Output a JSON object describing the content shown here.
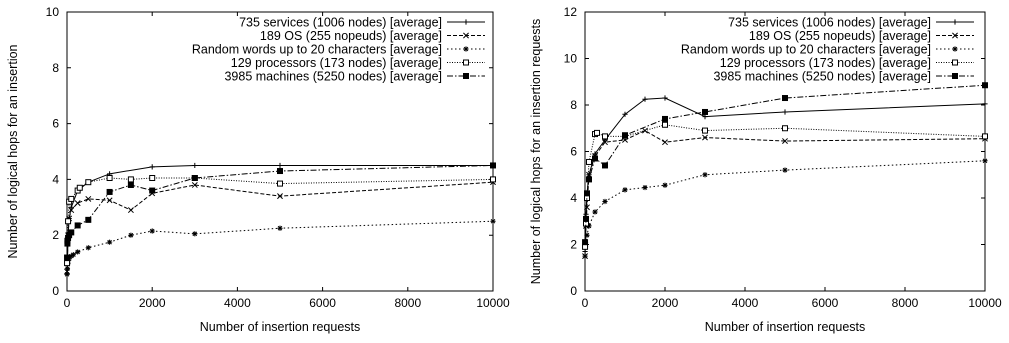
{
  "chart_data": [
    {
      "type": "line",
      "xlabel": "Number of insertion requests",
      "ylabel": "Number of logical hops for an insertion",
      "xlim": [
        0,
        10000
      ],
      "ylim": [
        0,
        10
      ],
      "xticks": [
        "0",
        "2000",
        "4000",
        "6000",
        "8000",
        "10000"
      ],
      "yticks": [
        "0",
        "2",
        "4",
        "6",
        "8",
        "10"
      ],
      "legend_position": "top-right",
      "grid": false,
      "series": [
        {
          "name": "735 services (1006 nodes) [average]",
          "marker": "plus",
          "dash": "solid",
          "x": [
            1,
            10,
            25,
            50,
            100,
            250,
            500,
            1000,
            2000,
            3000,
            5000,
            10000
          ],
          "y": [
            0.6,
            1.0,
            2.0,
            2.6,
            3.0,
            3.6,
            3.9,
            4.2,
            4.45,
            4.5,
            4.5,
            4.5
          ]
        },
        {
          "name": "189 OS (255 nopeuds) [average]",
          "marker": "x",
          "dash": "dashed",
          "x": [
            1,
            10,
            25,
            50,
            100,
            250,
            500,
            1000,
            1500,
            2000,
            3000,
            5000,
            10000
          ],
          "y": [
            0.7,
            1.2,
            2.0,
            2.6,
            2.9,
            3.15,
            3.3,
            3.25,
            2.9,
            3.5,
            3.8,
            3.4,
            3.9
          ]
        },
        {
          "name": "Random words up to 20 characters [average]",
          "marker": "star",
          "dash": "dotted",
          "x": [
            1,
            10,
            25,
            50,
            100,
            150,
            250,
            500,
            1000,
            1500,
            2000,
            3000,
            5000,
            10000
          ],
          "y": [
            0.6,
            0.8,
            1.0,
            1.15,
            1.25,
            1.3,
            1.4,
            1.55,
            1.75,
            2.0,
            2.15,
            2.05,
            2.25,
            2.5
          ]
        },
        {
          "name": "129 processors (173 nodes) [average]",
          "marker": "square-open",
          "dash": "fine-dotted",
          "x": [
            1,
            10,
            25,
            50,
            100,
            250,
            300,
            500,
            1000,
            1500,
            2000,
            3000,
            5000,
            10000
          ],
          "y": [
            1.0,
            1.8,
            2.5,
            3.2,
            3.3,
            3.6,
            3.7,
            3.9,
            4.05,
            4.0,
            4.05,
            4.05,
            3.85,
            4.0
          ]
        },
        {
          "name": "3985 machines (5250 nodes) [average]",
          "marker": "square-filled",
          "dash": "dash-dot",
          "x": [
            1,
            10,
            25,
            50,
            100,
            250,
            500,
            1000,
            1500,
            2000,
            3000,
            5000,
            10000
          ],
          "y": [
            1.2,
            1.7,
            1.9,
            2.0,
            2.1,
            2.35,
            2.55,
            3.55,
            3.8,
            3.6,
            4.05,
            4.3,
            4.5
          ]
        }
      ]
    },
    {
      "type": "line",
      "xlabel": "Number of insertion requests",
      "ylabel": "Number of logical hops for an insertion requests",
      "xlim": [
        0,
        10000
      ],
      "ylim": [
        0,
        12
      ],
      "xticks": [
        "0",
        "2000",
        "4000",
        "6000",
        "8000",
        "10000"
      ],
      "yticks": [
        "0",
        "2",
        "4",
        "6",
        "8",
        "10",
        "12"
      ],
      "legend_position": "top-right",
      "grid": false,
      "series": [
        {
          "name": "735 services (1006 nodes) [average]",
          "marker": "plus",
          "dash": "solid",
          "x": [
            1,
            25,
            50,
            100,
            250,
            500,
            1000,
            1500,
            2000,
            3000,
            5000,
            10000
          ],
          "y": [
            1.7,
            3.3,
            4.2,
            5.0,
            5.9,
            6.5,
            7.6,
            8.25,
            8.3,
            7.5,
            7.7,
            8.05
          ]
        },
        {
          "name": "189 OS (255 nopeuds) [average]",
          "marker": "x",
          "dash": "dashed",
          "x": [
            1,
            25,
            50,
            100,
            250,
            500,
            1000,
            1500,
            2000,
            3000,
            5000,
            10000
          ],
          "y": [
            1.5,
            2.8,
            3.6,
            5.0,
            5.8,
            6.4,
            6.5,
            6.9,
            6.4,
            6.6,
            6.45,
            6.55
          ]
        },
        {
          "name": "Random words up to 20 characters [average]",
          "marker": "star",
          "dash": "dotted",
          "x": [
            1,
            25,
            50,
            100,
            250,
            500,
            1000,
            1500,
            2000,
            3000,
            5000,
            10000
          ],
          "y": [
            1.5,
            2.0,
            2.4,
            2.8,
            3.4,
            3.85,
            4.35,
            4.45,
            4.55,
            5.0,
            5.2,
            5.6
          ]
        },
        {
          "name": "129 processors (173 nodes) [average]",
          "marker": "square-open",
          "dash": "fine-dotted",
          "x": [
            1,
            25,
            50,
            100,
            250,
            300,
            500,
            1000,
            2000,
            3000,
            5000,
            10000
          ],
          "y": [
            1.9,
            2.9,
            4.0,
            5.55,
            6.75,
            6.8,
            6.65,
            6.65,
            7.15,
            6.9,
            7.0,
            6.65
          ]
        },
        {
          "name": "3985 machines (5250 nodes) [average]",
          "marker": "square-filled",
          "dash": "dash-dot",
          "x": [
            1,
            25,
            50,
            100,
            250,
            500,
            1000,
            2000,
            3000,
            5000,
            10000
          ],
          "y": [
            2.1,
            3.1,
            4.2,
            4.8,
            5.7,
            5.4,
            6.7,
            7.4,
            7.7,
            8.3,
            8.85
          ]
        }
      ]
    }
  ]
}
